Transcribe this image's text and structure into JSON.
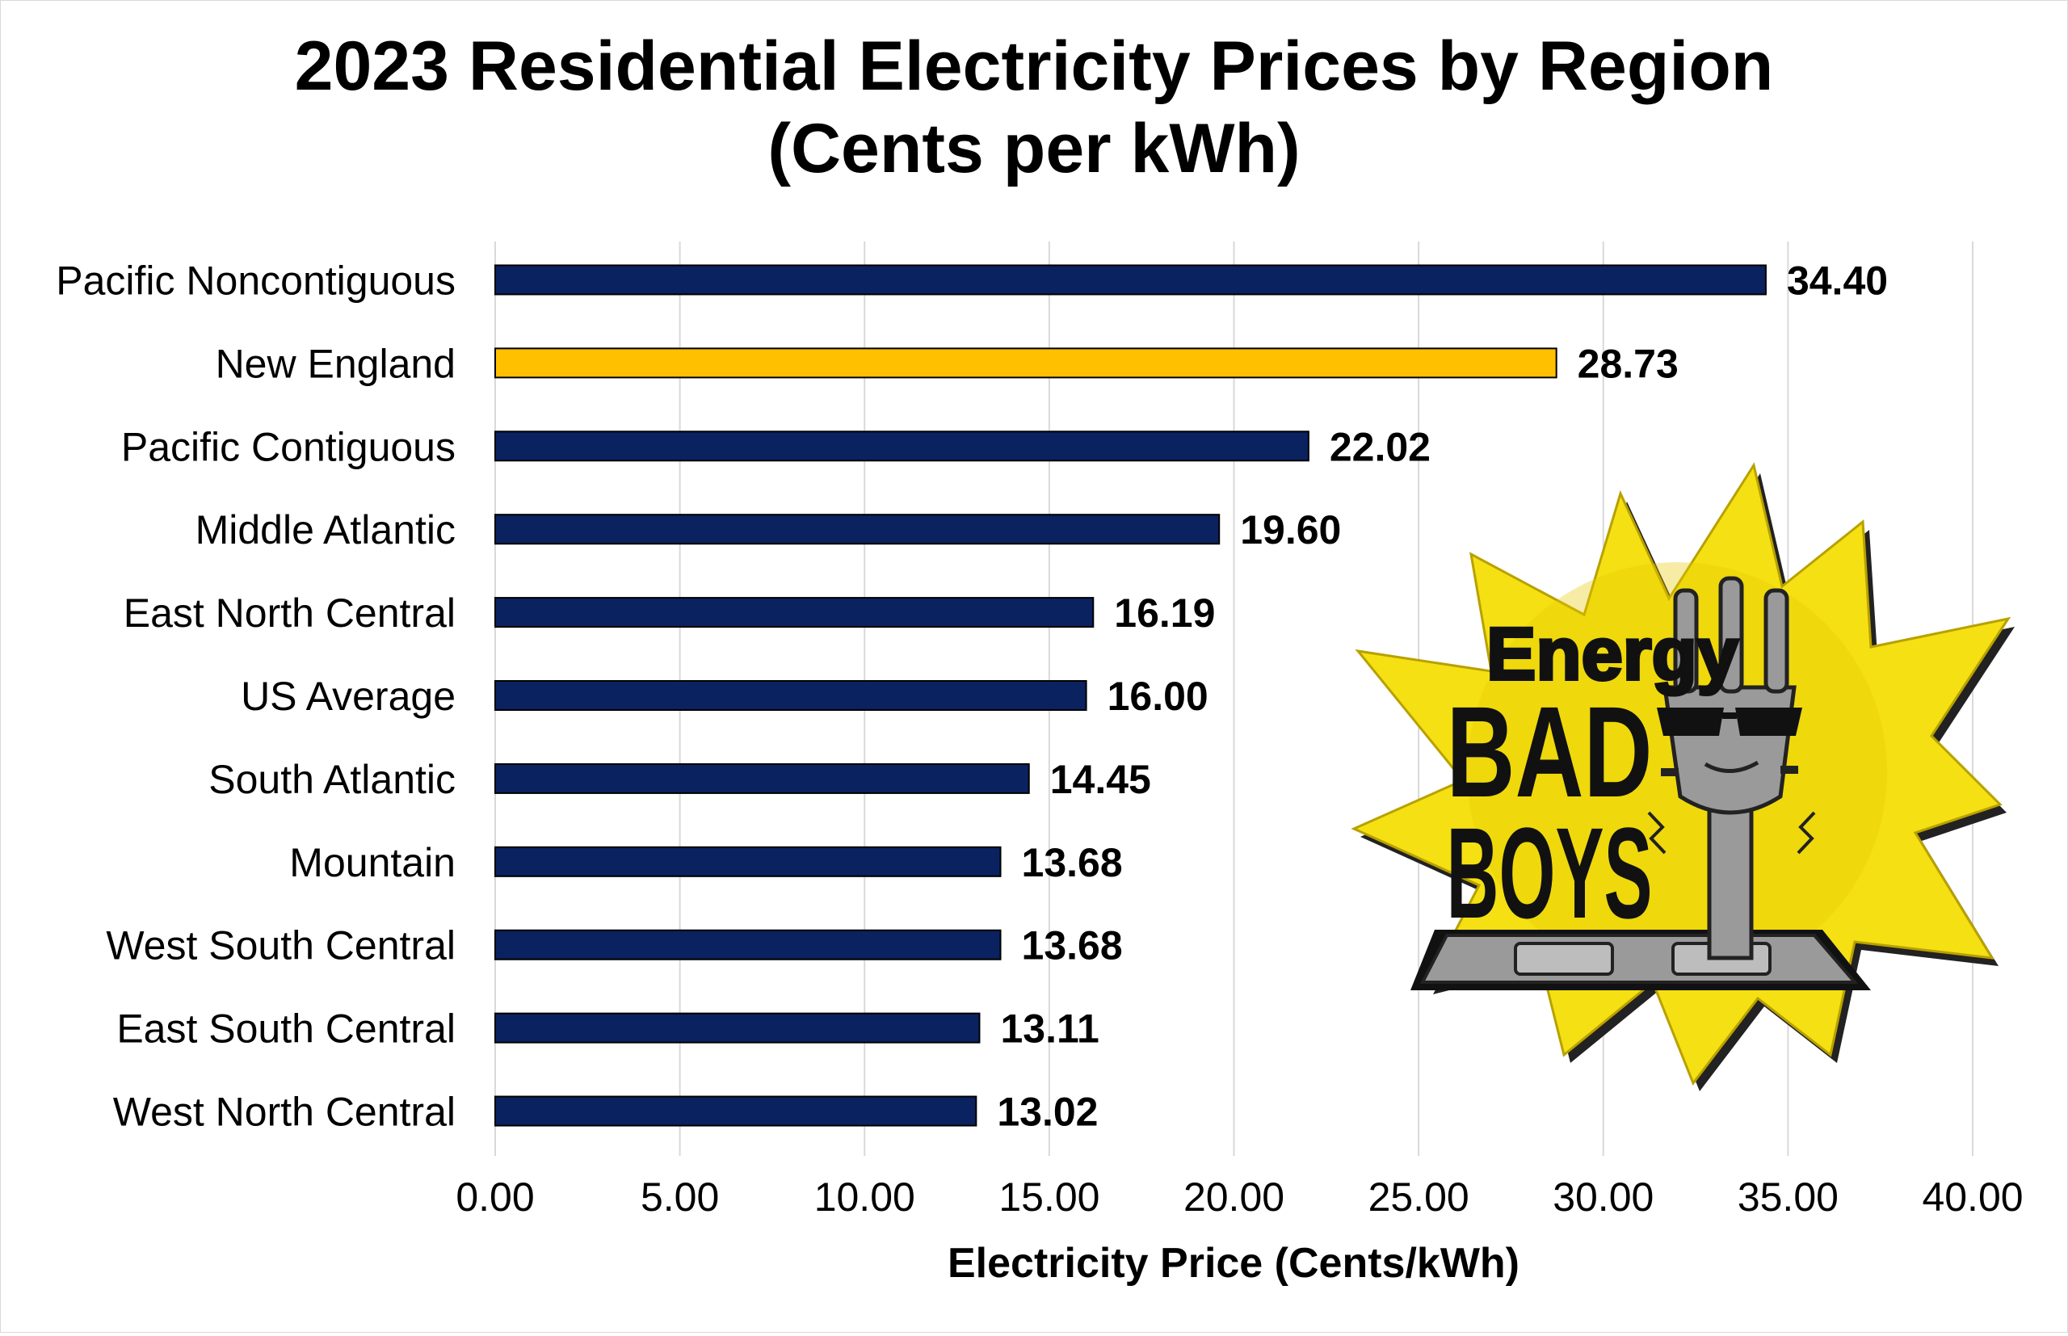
{
  "chart_data": {
    "type": "bar",
    "orientation": "horizontal",
    "title": "2023 Residential Electricity Prices by Region",
    "subtitle": "(Cents per kWh)",
    "xlabel": "Electricity Price (Cents/kWh)",
    "ylabel": "",
    "xlim": [
      0,
      40
    ],
    "x_ticks": [
      "0.00",
      "5.00",
      "10.00",
      "15.00",
      "20.00",
      "25.00",
      "30.00",
      "35.00",
      "40.00"
    ],
    "grid": "vertical",
    "categories": [
      "Pacific Noncontiguous",
      "New England",
      "Pacific Contiguous",
      "Middle Atlantic",
      "East North Central",
      "US Average",
      "South Atlantic",
      "Mountain",
      "West South Central",
      "East South Central",
      "West North Central"
    ],
    "values": [
      34.4,
      28.73,
      22.02,
      19.6,
      16.19,
      16.0,
      14.45,
      13.68,
      13.68,
      13.11,
      13.02
    ],
    "value_labels": [
      "34.40",
      "28.73",
      "22.02",
      "19.60",
      "16.19",
      "16.00",
      "14.45",
      "13.68",
      "13.68",
      "13.11",
      "13.02"
    ],
    "highlight": "New England",
    "colors": {
      "bar": "#0b2260",
      "highlight": "#ffc000",
      "bar_outline": "#000000",
      "grid": "#d9d9d9",
      "text": "#000000"
    }
  },
  "logo": {
    "name": "Energy Bad Boys",
    "line1": "Energy",
    "line2": "BAD",
    "line3": "BOYS",
    "colors": {
      "burst": "#f5e013",
      "burst_dark": "#e6c800",
      "text": "#111111",
      "plug": "#9a9a9a"
    }
  }
}
